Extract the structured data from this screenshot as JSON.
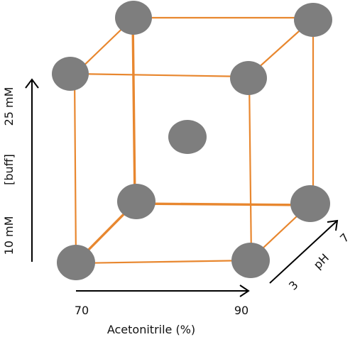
{
  "labels": {
    "x_title": "Acetonitrile (%)",
    "x_low": "70",
    "x_high": "90",
    "y_title": "[buff]",
    "y_low": "10 mM",
    "y_high": "25 mM",
    "z_title": "pH",
    "z_low": "3",
    "z_high": "7"
  },
  "colors": {
    "edge": "#e8872f",
    "node": "#7e7e7e",
    "arrow": "#000000"
  }
}
